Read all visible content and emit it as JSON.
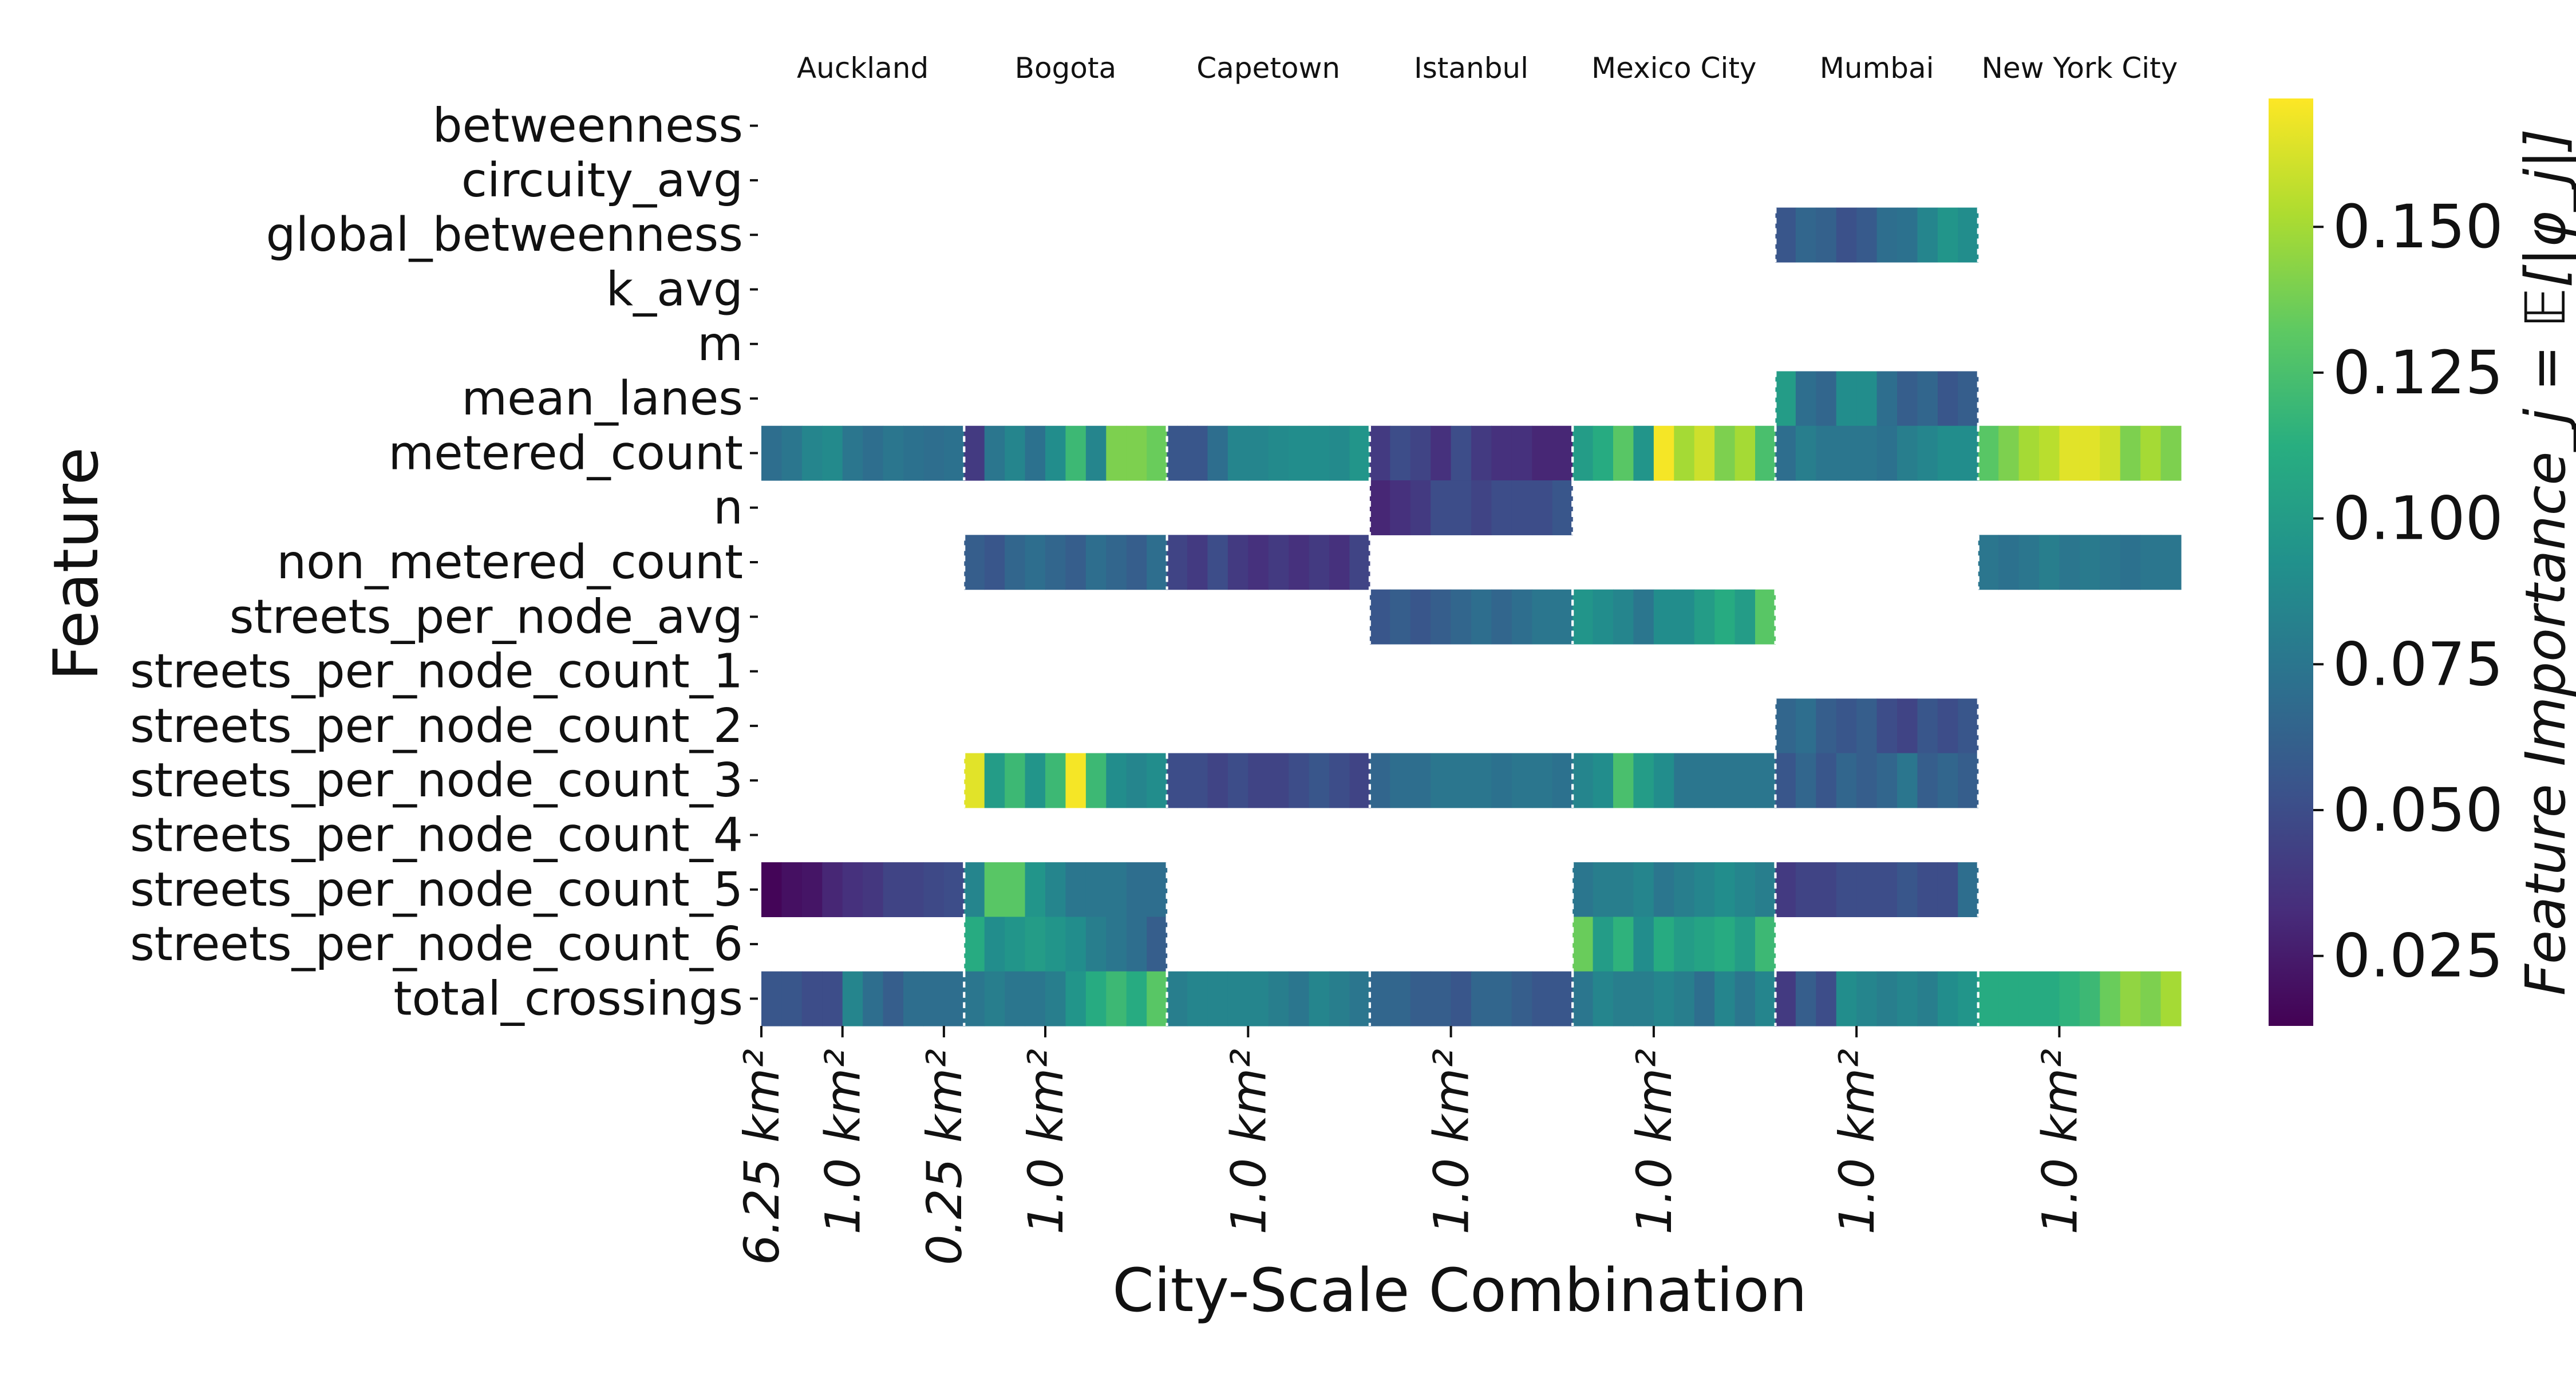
{
  "chart_data": {
    "type": "heatmap",
    "xlabel": "City-Scale Combination",
    "ylabel": "Feature",
    "colorbar_label": "Feature Importance_j = 𝔼[|φ_j|]",
    "colorbar_ticks": [
      0.025,
      0.05,
      0.075,
      0.1,
      0.125,
      0.15
    ],
    "colorbar_tick_labels": [
      "0.025",
      "0.050",
      "0.075",
      "0.100",
      "0.125",
      "0.150"
    ],
    "value_range": [
      0.013,
      0.172
    ],
    "colormap": "viridis",
    "cells_per_city": 10,
    "cities": [
      "Auckland",
      "Bogota",
      "Capetown",
      "Istanbul",
      "Mexico City",
      "Mumbai",
      "New York City"
    ],
    "x_tick_labels": [
      {
        "cell": 0,
        "label": "6.25 km²"
      },
      {
        "cell": 4,
        "label": "1.0 km²"
      },
      {
        "cell": 9,
        "label": "0.25 km²"
      },
      {
        "cell": 14,
        "label": "1.0 km²"
      },
      {
        "cell": 24,
        "label": "1.0 km²"
      },
      {
        "cell": 34,
        "label": "1.0 km²"
      },
      {
        "cell": 44,
        "label": "1.0 km²"
      },
      {
        "cell": 54,
        "label": "1.0 km²"
      },
      {
        "cell": 64,
        "label": "1.0 km²"
      }
    ],
    "features": [
      "betweenness",
      "circuity_avg",
      "global_betweenness",
      "k_avg",
      "m",
      "mean_lanes",
      "metered_count",
      "n",
      "non_metered_count",
      "streets_per_node_avg",
      "streets_per_node_count_1",
      "streets_per_node_count_2",
      "streets_per_node_count_3",
      "streets_per_node_count_4",
      "streets_per_node_count_5",
      "streets_per_node_count_6",
      "total_crossings"
    ],
    "values": {
      "betweenness": {},
      "circuity_avg": {},
      "global_betweenness": {
        "Mumbai": [
          0.055,
          0.065,
          0.062,
          0.052,
          0.058,
          0.07,
          0.072,
          0.085,
          0.095,
          0.09
        ]
      },
      "k_avg": {},
      "m": {},
      "mean_lanes": {
        "Mumbai": [
          0.1,
          0.07,
          0.065,
          0.09,
          0.09,
          0.07,
          0.06,
          0.065,
          0.055,
          0.06
        ]
      },
      "metered_count": {
        "Auckland": [
          0.07,
          0.075,
          0.085,
          0.088,
          0.075,
          0.07,
          0.075,
          0.072,
          0.07,
          0.072
        ],
        "Bogota": [
          0.04,
          0.075,
          0.085,
          0.072,
          0.09,
          0.12,
          0.085,
          0.14,
          0.14,
          0.135
        ],
        "Capetown": [
          0.055,
          0.055,
          0.07,
          0.085,
          0.085,
          0.088,
          0.09,
          0.09,
          0.088,
          0.095
        ],
        "Istanbul": [
          0.04,
          0.05,
          0.045,
          0.035,
          0.05,
          0.04,
          0.035,
          0.035,
          0.03,
          0.03
        ],
        "Mexico City": [
          0.1,
          0.11,
          0.13,
          0.095,
          0.17,
          0.15,
          0.16,
          0.14,
          0.15,
          0.125
        ],
        "Mumbai": [
          0.07,
          0.08,
          0.075,
          0.075,
          0.075,
          0.072,
          0.08,
          0.085,
          0.09,
          0.09
        ],
        "New York City": [
          0.13,
          0.14,
          0.15,
          0.155,
          0.165,
          0.165,
          0.16,
          0.14,
          0.15,
          0.14
        ]
      },
      "n": {
        "Istanbul": [
          0.03,
          0.035,
          0.04,
          0.05,
          0.05,
          0.045,
          0.05,
          0.05,
          0.05,
          0.055
        ]
      },
      "non_metered_count": {
        "Bogota": [
          0.06,
          0.055,
          0.065,
          0.07,
          0.065,
          0.06,
          0.07,
          0.065,
          0.06,
          0.07
        ],
        "Capetown": [
          0.045,
          0.04,
          0.05,
          0.04,
          0.035,
          0.04,
          0.035,
          0.04,
          0.035,
          0.045
        ],
        "New York City": [
          0.075,
          0.072,
          0.075,
          0.08,
          0.075,
          0.078,
          0.075,
          0.072,
          0.075,
          0.075
        ]
      },
      "streets_per_node_avg": {
        "Istanbul": [
          0.055,
          0.06,
          0.055,
          0.06,
          0.065,
          0.07,
          0.065,
          0.07,
          0.075,
          0.075
        ],
        "Mexico City": [
          0.095,
          0.09,
          0.085,
          0.075,
          0.09,
          0.09,
          0.1,
          0.11,
          0.1,
          0.13
        ]
      },
      "streets_per_node_count_1": {},
      "streets_per_node_count_2": {
        "Mumbai": [
          0.065,
          0.07,
          0.06,
          0.055,
          0.06,
          0.05,
          0.045,
          0.055,
          0.05,
          0.055
        ]
      },
      "streets_per_node_count_3": {
        "Bogota": [
          0.165,
          0.1,
          0.12,
          0.095,
          0.12,
          0.17,
          0.12,
          0.09,
          0.085,
          0.09
        ],
        "Capetown": [
          0.05,
          0.05,
          0.045,
          0.05,
          0.045,
          0.045,
          0.05,
          0.055,
          0.05,
          0.045
        ],
        "Istanbul": [
          0.065,
          0.07,
          0.07,
          0.075,
          0.075,
          0.075,
          0.072,
          0.075,
          0.075,
          0.072
        ],
        "Mexico City": [
          0.085,
          0.09,
          0.125,
          0.1,
          0.09,
          0.075,
          0.075,
          0.075,
          0.075,
          0.075
        ],
        "Mumbai": [
          0.055,
          0.065,
          0.055,
          0.065,
          0.06,
          0.065,
          0.075,
          0.06,
          0.065,
          0.06
        ]
      },
      "streets_per_node_count_4": {},
      "streets_per_node_count_5": {
        "Auckland": [
          0.015,
          0.02,
          0.022,
          0.03,
          0.035,
          0.038,
          0.045,
          0.045,
          0.048,
          0.05
        ],
        "Bogota": [
          0.085,
          0.13,
          0.13,
          0.095,
          0.085,
          0.075,
          0.075,
          0.075,
          0.07,
          0.07
        ],
        "Mexico City": [
          0.075,
          0.08,
          0.08,
          0.085,
          0.075,
          0.08,
          0.085,
          0.09,
          0.085,
          0.08
        ],
        "Mumbai": [
          0.04,
          0.045,
          0.045,
          0.05,
          0.05,
          0.05,
          0.055,
          0.05,
          0.05,
          0.07
        ]
      },
      "streets_per_node_count_6": {
        "Bogota": [
          0.11,
          0.09,
          0.095,
          0.1,
          0.095,
          0.09,
          0.08,
          0.075,
          0.07,
          0.06
        ],
        "Mexico City": [
          0.135,
          0.1,
          0.115,
          0.09,
          0.11,
          0.1,
          0.105,
          0.11,
          0.1,
          0.12
        ]
      },
      "streets_per_node_count_7": {},
      "total_crossings": {
        "Auckland": [
          0.055,
          0.055,
          0.05,
          0.05,
          0.085,
          0.07,
          0.06,
          0.07,
          0.07,
          0.07
        ],
        "Bogota": [
          0.075,
          0.08,
          0.075,
          0.075,
          0.08,
          0.095,
          0.11,
          0.12,
          0.11,
          0.13
        ],
        "Capetown": [
          0.08,
          0.085,
          0.085,
          0.085,
          0.085,
          0.08,
          0.075,
          0.085,
          0.08,
          0.075
        ],
        "Istanbul": [
          0.065,
          0.065,
          0.06,
          0.06,
          0.055,
          0.065,
          0.065,
          0.06,
          0.055,
          0.055
        ],
        "Mexico City": [
          0.075,
          0.085,
          0.08,
          0.08,
          0.085,
          0.08,
          0.07,
          0.085,
          0.075,
          0.085
        ],
        "Mumbai": [
          0.04,
          0.06,
          0.05,
          0.09,
          0.085,
          0.08,
          0.085,
          0.08,
          0.09,
          0.095
        ],
        "New York City": [
          0.11,
          0.11,
          0.11,
          0.11,
          0.115,
          0.12,
          0.135,
          0.145,
          0.14,
          0.15
        ]
      }
    }
  }
}
